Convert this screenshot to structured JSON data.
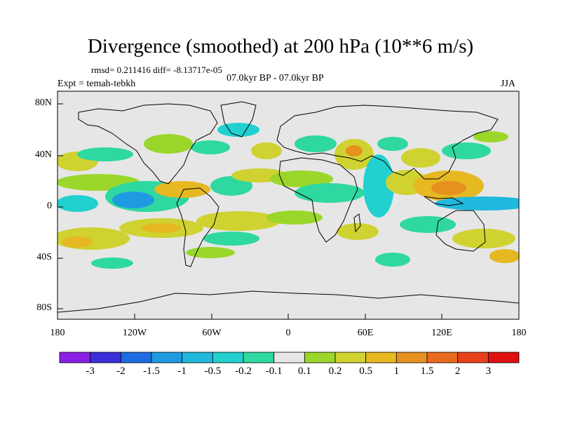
{
  "title": "Divergence (smoothed) at 200 hPa (10**6 m/s)",
  "stats_line": "rmsd= 0.211416 diff= -8.13717e-05",
  "experiment_line": "Expt = temah-tebkh",
  "period_line": "07.0kyr BP - 07.0kyr BP",
  "season": "JJA",
  "y_axis_labels": [
    "80N",
    "40N",
    "0",
    "40S",
    "80S"
  ],
  "x_axis_labels": [
    "180",
    "120W",
    "60W",
    "0",
    "60E",
    "120E",
    "180"
  ],
  "colorbar": {
    "labels": [
      "-3",
      "-2",
      "-1.5",
      "-1",
      "-0.5",
      "-0.2",
      "-0.1",
      "0.1",
      "0.2",
      "0.5",
      "1",
      "1.5",
      "2",
      "3"
    ],
    "colors": [
      "#8a1ee6",
      "#3a2fd8",
      "#1f6ce0",
      "#1e9be0",
      "#20b8dc",
      "#22d0d0",
      "#2ed8a0",
      "#e6e6e6",
      "#9bd62a",
      "#cfd230",
      "#e6b822",
      "#e69020",
      "#e86a1c",
      "#e8401a",
      "#e01010"
    ]
  },
  "map_background_color": "#e6e6e6"
}
